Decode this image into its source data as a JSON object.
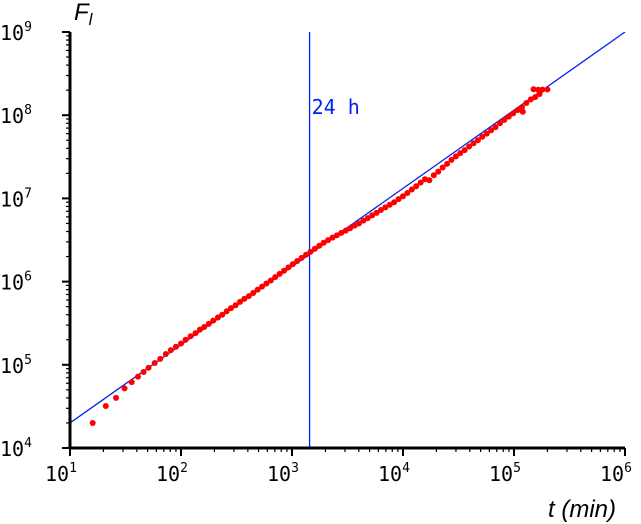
{
  "chart_data": {
    "type": "scatter",
    "title": "",
    "xlabel": "t (min)",
    "ylabel": "F_l",
    "ylabel_main": "F",
    "ylabel_sub": "l",
    "xscale": "log",
    "yscale": "log",
    "xlim": [
      10,
      1000000
    ],
    "ylim": [
      10000,
      1000000000
    ],
    "grid": false,
    "x_ticks": [
      {
        "base": "10",
        "exp": "1"
      },
      {
        "base": "10",
        "exp": "2"
      },
      {
        "base": "10",
        "exp": "3"
      },
      {
        "base": "10",
        "exp": "4"
      },
      {
        "base": "10",
        "exp": "5"
      },
      {
        "base": "10",
        "exp": "6"
      }
    ],
    "y_ticks": [
      {
        "base": "10",
        "exp": "4"
      },
      {
        "base": "10",
        "exp": "5"
      },
      {
        "base": "10",
        "exp": "6"
      },
      {
        "base": "10",
        "exp": "7"
      },
      {
        "base": "10",
        "exp": "8"
      },
      {
        "base": "10",
        "exp": "9"
      }
    ],
    "colors": {
      "points": "#ff0000",
      "fit": "#0022ee",
      "marker_line": "#0022ee",
      "axes": "#000000"
    },
    "fit_line": {
      "x": [
        10,
        1000000
      ],
      "y": [
        20000,
        1000000000
      ]
    },
    "vertical_marker": {
      "x": 1440,
      "label": "24 h"
    },
    "series": [
      {
        "points": [
          [
            16,
            20000
          ],
          [
            21,
            32000
          ],
          [
            26,
            40000
          ],
          [
            31,
            52000
          ],
          [
            36,
            62000
          ],
          [
            41,
            72000
          ],
          [
            46,
            82000
          ],
          [
            51,
            92000
          ],
          [
            58,
            105000
          ],
          [
            65,
            118000
          ],
          [
            73,
            135000
          ],
          [
            81,
            150000
          ],
          [
            90,
            165000
          ],
          [
            100,
            180000
          ],
          [
            110,
            200000
          ],
          [
            122,
            220000
          ],
          [
            135,
            240000
          ],
          [
            148,
            265000
          ],
          [
            162,
            285000
          ],
          [
            178,
            310000
          ],
          [
            195,
            340000
          ],
          [
            215,
            370000
          ],
          [
            235,
            400000
          ],
          [
            258,
            440000
          ],
          [
            282,
            480000
          ],
          [
            310,
            520000
          ],
          [
            340,
            570000
          ],
          [
            372,
            620000
          ],
          [
            408,
            670000
          ],
          [
            447,
            730000
          ],
          [
            490,
            800000
          ],
          [
            537,
            870000
          ],
          [
            588,
            950000
          ],
          [
            644,
            1030000
          ],
          [
            705,
            1130000
          ],
          [
            773,
            1240000
          ],
          [
            847,
            1350000
          ],
          [
            928,
            1480000
          ],
          [
            1017,
            1620000
          ],
          [
            1114,
            1770000
          ],
          [
            1221,
            1930000
          ],
          [
            1338,
            2100000
          ],
          [
            1466,
            2280000
          ],
          [
            1606,
            2480000
          ],
          [
            1760,
            2700000
          ],
          [
            1928,
            2930000
          ],
          [
            2113,
            3150000
          ],
          [
            2315,
            3380000
          ],
          [
            2537,
            3600000
          ],
          [
            2780,
            3850000
          ],
          [
            3046,
            4100000
          ],
          [
            3337,
            4380000
          ],
          [
            3657,
            4700000
          ],
          [
            4007,
            5000000
          ],
          [
            4390,
            5400000
          ],
          [
            4810,
            5800000
          ],
          [
            5271,
            6250000
          ],
          [
            5775,
            6700000
          ],
          [
            6328,
            7250000
          ],
          [
            6934,
            7800000
          ],
          [
            7598,
            8400000
          ],
          [
            8325,
            9000000
          ],
          [
            9122,
            9800000
          ],
          [
            9995,
            10600000
          ],
          [
            10952,
            11600000
          ],
          [
            12000,
            12800000
          ],
          [
            13149,
            14000000
          ],
          [
            14408,
            15500000
          ],
          [
            15788,
            17000000
          ],
          [
            17299,
            16500000
          ],
          [
            18955,
            19000000
          ],
          [
            20770,
            21000000
          ],
          [
            22758,
            23500000
          ],
          [
            24937,
            26000000
          ],
          [
            27325,
            29000000
          ],
          [
            29941,
            32000000
          ],
          [
            32807,
            35000000
          ],
          [
            35948,
            38000000
          ],
          [
            39390,
            42000000
          ],
          [
            43161,
            46000000
          ],
          [
            47293,
            50000000
          ],
          [
            51821,
            55000000
          ],
          [
            56783,
            60000000
          ],
          [
            62219,
            66000000
          ],
          [
            68176,
            72000000
          ],
          [
            74703,
            80000000
          ],
          [
            81855,
            88000000
          ],
          [
            89692,
            96000000
          ],
          [
            98279,
            105000000
          ],
          [
            107688,
            115000000
          ],
          [
            117998,
            125000000
          ],
          [
            129296,
            140000000
          ],
          [
            141674,
            155000000
          ],
          [
            155238,
            165000000
          ],
          [
            170100,
            180000000
          ],
          [
            120000,
            110000000
          ],
          [
            150000,
            205000000
          ],
          [
            165000,
            202000000
          ],
          [
            180000,
            203000000
          ],
          [
            200000,
            204000000
          ]
        ]
      }
    ]
  }
}
